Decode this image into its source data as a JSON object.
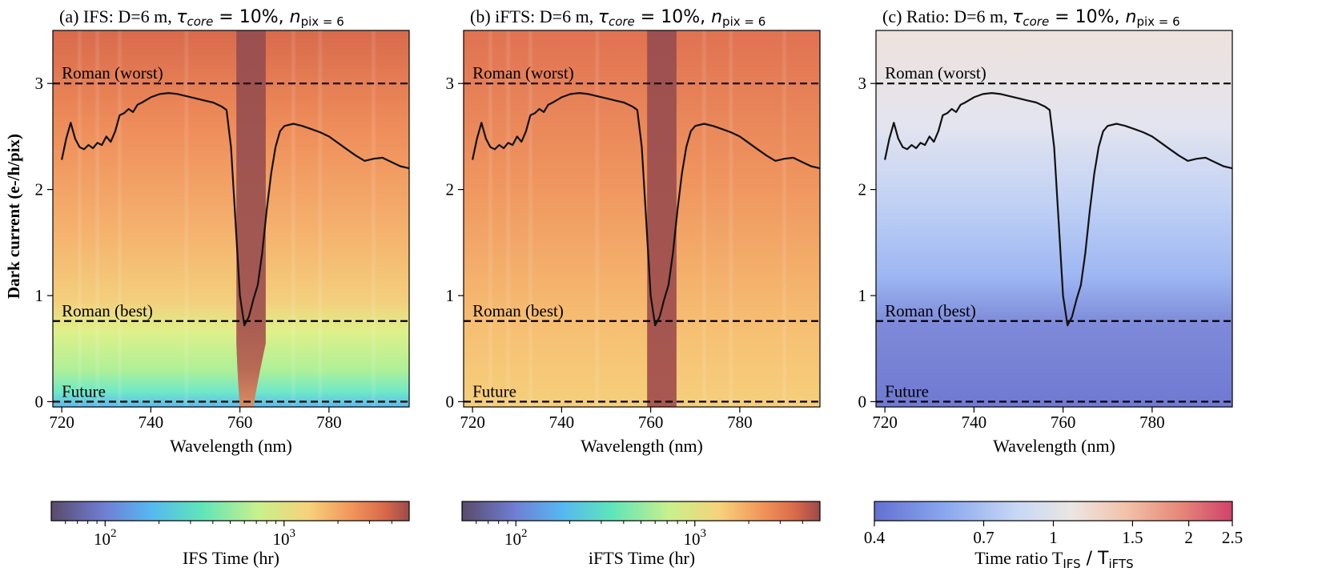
{
  "figure": {
    "ylabel": "Dark current (e-/h/pix)"
  },
  "chart_data": [
    {
      "type": "heatmap",
      "panel_id": "a",
      "title_prefix": "(a) IFS: D=6 m, ",
      "title_tau_sym": "τ",
      "title_tau_sub": "core",
      "title_tau_val": " = 10%,  ",
      "title_n_sym": "n",
      "title_n_sub": "pix = 6",
      "xlabel": "Wavelength (nm)",
      "xlim": [
        718,
        798
      ],
      "ylim": [
        -0.05,
        3.5
      ],
      "xticks": [
        720,
        740,
        760,
        780
      ],
      "yticks": [
        0,
        1,
        2,
        3
      ],
      "hlines": [
        {
          "label": "Roman (worst)",
          "y": 3.0
        },
        {
          "label": "Roman (best)",
          "y": 0.76
        },
        {
          "label": "Future",
          "y": 0.0
        }
      ],
      "curve": {
        "x": [
          720,
          721,
          722,
          723,
          724,
          725,
          726,
          727,
          728,
          729,
          730,
          731,
          732,
          733,
          734,
          735,
          736,
          737,
          738,
          740,
          742,
          744,
          746,
          748,
          750,
          752,
          754,
          756,
          757,
          758,
          759,
          760,
          761,
          762,
          763,
          764,
          765,
          766,
          767,
          768,
          769,
          770,
          772,
          774,
          776,
          778,
          780,
          782,
          784,
          786,
          788,
          790,
          792,
          794,
          796,
          798
        ],
        "y": [
          2.28,
          2.48,
          2.63,
          2.48,
          2.4,
          2.38,
          2.42,
          2.39,
          2.44,
          2.42,
          2.5,
          2.45,
          2.55,
          2.7,
          2.72,
          2.76,
          2.73,
          2.8,
          2.82,
          2.87,
          2.9,
          2.91,
          2.9,
          2.88,
          2.86,
          2.84,
          2.82,
          2.78,
          2.75,
          2.4,
          1.7,
          1.0,
          0.72,
          0.8,
          0.96,
          1.1,
          1.4,
          1.8,
          2.15,
          2.4,
          2.55,
          2.6,
          2.62,
          2.6,
          2.57,
          2.54,
          2.5,
          2.44,
          2.38,
          2.32,
          2.27,
          2.29,
          2.3,
          2.26,
          2.22,
          2.2
        ]
      },
      "colorbar": {
        "label": "IFS Time (hr)",
        "scale": "log",
        "range": [
          50,
          5000
        ],
        "tick_values": [
          100,
          1000
        ],
        "tick_base": "10",
        "tick_exps": [
          "2",
          "3"
        ],
        "colormap": "turbo-like"
      }
    },
    {
      "type": "heatmap",
      "panel_id": "b",
      "title_prefix": "(b) iFTS: D=6 m, ",
      "title_tau_sym": "τ",
      "title_tau_sub": "core",
      "title_tau_val": " = 10%,  ",
      "title_n_sym": "n",
      "title_n_sub": "pix = 6",
      "xlabel": "Wavelength (nm)",
      "xlim": [
        718,
        798
      ],
      "ylim": [
        -0.05,
        3.5
      ],
      "xticks": [
        720,
        740,
        760,
        780
      ],
      "yticks": [
        0,
        1,
        2,
        3
      ],
      "hlines": [
        {
          "label": "Roman (worst)",
          "y": 3.0
        },
        {
          "label": "Roman (best)",
          "y": 0.76
        },
        {
          "label": "Future",
          "y": 0.0
        }
      ],
      "curve": {
        "x": [
          720,
          721,
          722,
          723,
          724,
          725,
          726,
          727,
          728,
          729,
          730,
          731,
          732,
          733,
          734,
          735,
          736,
          737,
          738,
          740,
          742,
          744,
          746,
          748,
          750,
          752,
          754,
          756,
          757,
          758,
          759,
          760,
          761,
          762,
          763,
          764,
          765,
          766,
          767,
          768,
          769,
          770,
          772,
          774,
          776,
          778,
          780,
          782,
          784,
          786,
          788,
          790,
          792,
          794,
          796,
          798
        ],
        "y": [
          2.28,
          2.48,
          2.63,
          2.48,
          2.4,
          2.38,
          2.42,
          2.39,
          2.44,
          2.42,
          2.5,
          2.45,
          2.55,
          2.7,
          2.72,
          2.76,
          2.73,
          2.8,
          2.82,
          2.87,
          2.9,
          2.91,
          2.9,
          2.88,
          2.86,
          2.84,
          2.82,
          2.78,
          2.75,
          2.4,
          1.7,
          1.0,
          0.72,
          0.8,
          0.96,
          1.1,
          1.4,
          1.8,
          2.15,
          2.4,
          2.55,
          2.6,
          2.62,
          2.6,
          2.57,
          2.54,
          2.5,
          2.44,
          2.38,
          2.32,
          2.27,
          2.29,
          2.3,
          2.26,
          2.22,
          2.2
        ]
      },
      "colorbar": {
        "label": "iFTS Time (hr)",
        "scale": "log",
        "range": [
          50,
          5000
        ],
        "tick_values": [
          100,
          1000
        ],
        "tick_base": "10",
        "tick_exps": [
          "2",
          "3"
        ],
        "colormap": "turbo-like"
      }
    },
    {
      "type": "heatmap",
      "panel_id": "c",
      "title_prefix": "(c) Ratio: D=6 m, ",
      "title_tau_sym": "τ",
      "title_tau_sub": "core",
      "title_tau_val": " = 10%,  ",
      "title_n_sym": "n",
      "title_n_sub": "pix = 6",
      "xlabel": "Wavelength (nm)",
      "xlim": [
        718,
        798
      ],
      "ylim": [
        -0.05,
        3.5
      ],
      "xticks": [
        720,
        740,
        760,
        780
      ],
      "yticks": [
        0,
        1,
        2,
        3
      ],
      "hlines": [
        {
          "label": "Roman (worst)",
          "y": 3.0
        },
        {
          "label": "Roman (best)",
          "y": 0.76
        },
        {
          "label": "Future",
          "y": 0.0
        }
      ],
      "curve": {
        "x": [
          720,
          721,
          722,
          723,
          724,
          725,
          726,
          727,
          728,
          729,
          730,
          731,
          732,
          733,
          734,
          735,
          736,
          737,
          738,
          740,
          742,
          744,
          746,
          748,
          750,
          752,
          754,
          756,
          757,
          758,
          759,
          760,
          761,
          762,
          763,
          764,
          765,
          766,
          767,
          768,
          769,
          770,
          772,
          774,
          776,
          778,
          780,
          782,
          784,
          786,
          788,
          790,
          792,
          794,
          796,
          798
        ],
        "y": [
          2.28,
          2.48,
          2.63,
          2.48,
          2.4,
          2.38,
          2.42,
          2.39,
          2.44,
          2.42,
          2.5,
          2.45,
          2.55,
          2.7,
          2.72,
          2.76,
          2.73,
          2.8,
          2.82,
          2.87,
          2.9,
          2.91,
          2.9,
          2.88,
          2.86,
          2.84,
          2.82,
          2.78,
          2.75,
          2.4,
          1.7,
          1.0,
          0.72,
          0.8,
          0.96,
          1.1,
          1.4,
          1.8,
          2.15,
          2.4,
          2.55,
          2.6,
          2.62,
          2.6,
          2.57,
          2.54,
          2.5,
          2.44,
          2.38,
          2.32,
          2.27,
          2.29,
          2.3,
          2.26,
          2.22,
          2.2
        ]
      },
      "colorbar": {
        "label_prefix": "Time ratio T",
        "label_sub1": "IFS",
        "label_mid": " / T",
        "label_sub2": "iFTS",
        "scale": "log",
        "range": [
          0.4,
          2.5
        ],
        "tick_values": [
          0.4,
          0.7,
          1,
          1.5,
          2,
          2.5
        ],
        "tick_labels": [
          "0.4",
          "0.7",
          "1",
          "1.5",
          "2",
          "2.5"
        ],
        "colormap": "coolwarm"
      }
    }
  ]
}
